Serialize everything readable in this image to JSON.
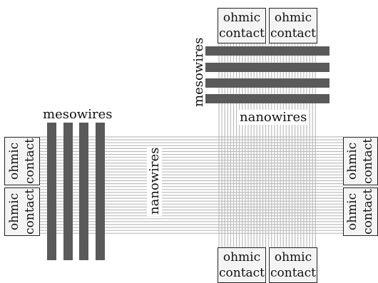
{
  "labels": {
    "mesowires": "mesowires",
    "nanowires": "nanowires",
    "contact_line1": "ohmic",
    "contact_line2": "contact"
  },
  "colors": {
    "mesowire": "#5a5a5a",
    "nanowire": "#bdbdbd",
    "contact_bg": "#f4f4f4",
    "contact_border": "#222222"
  }
}
